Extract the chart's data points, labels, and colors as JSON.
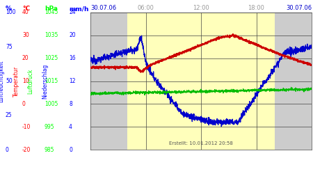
{
  "created": "Erstellt: 10.01.2012 20:58",
  "color_humidity": "#0000cc",
  "color_temp": "#cc0000",
  "color_pressure": "#00bb00",
  "grid_color": "#444444",
  "text_color_time": "#999999",
  "plot_bg_grey": "#cccccc",
  "plot_bg_yellow": "#ffffbb",
  "left_bg": "#ffffff",
  "day_start": 4.0,
  "day_end": 20.0,
  "hum_ticks": [
    100,
    75,
    50,
    25,
    0
  ],
  "temp_ticks": [
    40,
    30,
    20,
    10,
    0,
    -10,
    -20
  ],
  "pres_ticks": [
    1045,
    1035,
    1025,
    1015,
    1005,
    995,
    985
  ],
  "prec_ticks": [
    24,
    20,
    16,
    12,
    8,
    4,
    0
  ],
  "temp_min": -20,
  "temp_max": 40,
  "pres_min": 985,
  "pres_max": 1045,
  "prec_min": 0,
  "prec_max": 24,
  "hum_min": 0,
  "hum_max": 100
}
